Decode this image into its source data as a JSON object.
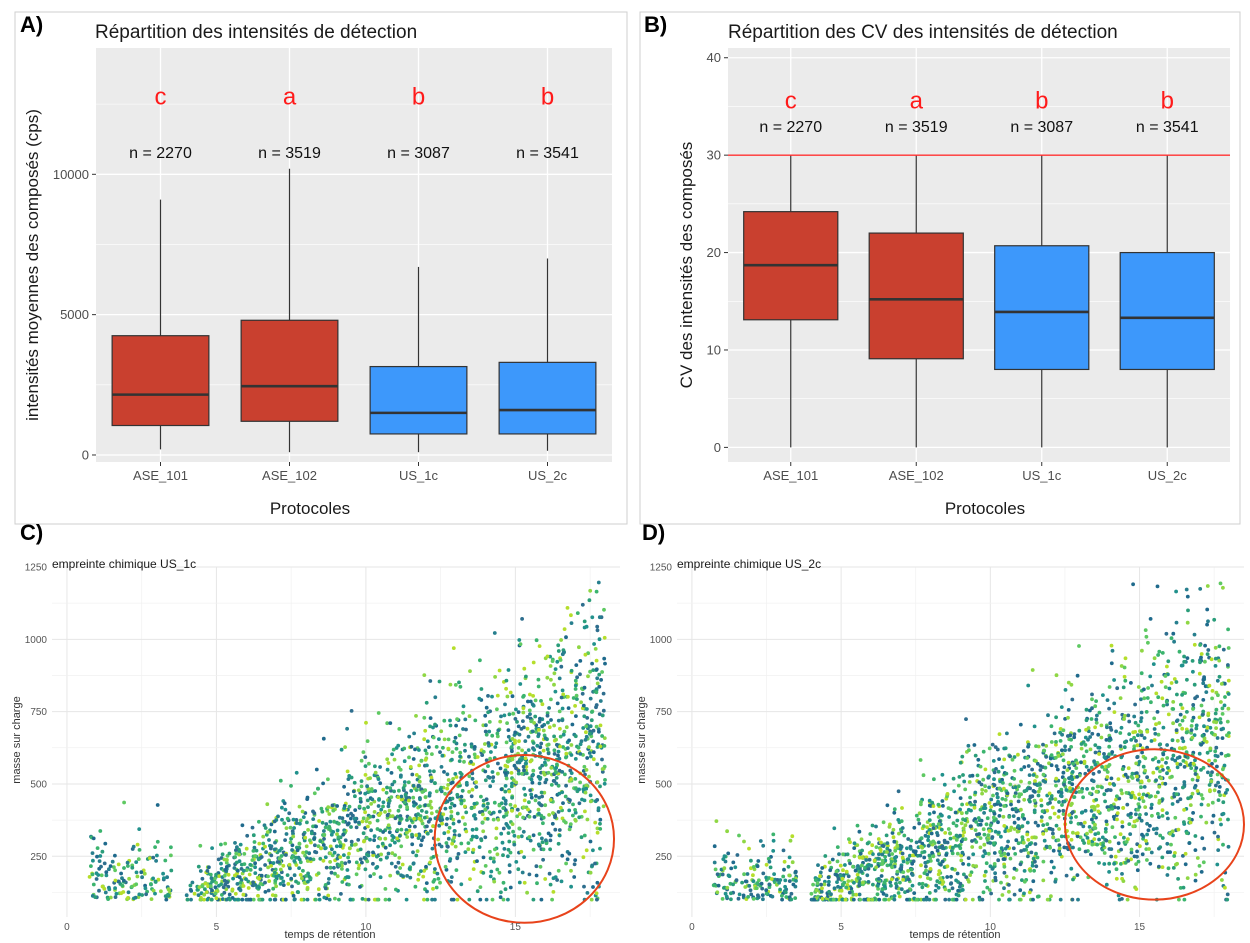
{
  "panels": {
    "a": "A)",
    "b": "B)",
    "c": "C)",
    "d": "D)"
  },
  "colors": {
    "ase": "#c9402f",
    "us": "#3d98fb",
    "panel_bg": "#ebebeb",
    "grid": "#ffffff",
    "threshold": "#ff3030",
    "ellipse": "#e8431b"
  },
  "chart_data": [
    {
      "id": "A",
      "type": "box",
      "title": "Répartition des intensités de détection",
      "xlabel": "Protocoles",
      "ylabel": "intensités moyennes des composés (cps)",
      "ylim": [
        -250,
        14500
      ],
      "yticks": [
        0,
        5000,
        10000
      ],
      "ytick_labels": [
        "0",
        "5000",
        "10000"
      ],
      "categories": [
        "ASE_101",
        "ASE_102",
        "US_1c",
        "US_2c"
      ],
      "groups": [
        "ase",
        "ase",
        "us",
        "us"
      ],
      "boxes": [
        {
          "min": 200,
          "q1": 1050,
          "median": 2150,
          "q3": 4250,
          "max": 9100
        },
        {
          "min": 100,
          "q1": 1200,
          "median": 2450,
          "q3": 4800,
          "max": 10200
        },
        {
          "min": 100,
          "q1": 750,
          "median": 1500,
          "q3": 3150,
          "max": 6700
        },
        {
          "min": 150,
          "q1": 750,
          "median": 1600,
          "q3": 3300,
          "max": 7000
        }
      ],
      "n_labels": [
        "n = 2270",
        "n = 3519",
        "n = 3087",
        "n = 3541"
      ],
      "n_y": 10800,
      "letters": [
        "c",
        "a",
        "b",
        "b"
      ],
      "letter_y": 12800
    },
    {
      "id": "B",
      "type": "box",
      "title": "Répartition des CV des intensités de détection",
      "xlabel": "Protocoles",
      "ylabel": "CV des intensités des composés",
      "ylim": [
        -1.5,
        41
      ],
      "yticks": [
        0,
        10,
        20,
        30,
        40
      ],
      "ytick_labels": [
        "0",
        "10",
        "20",
        "30",
        "40"
      ],
      "categories": [
        "ASE_101",
        "ASE_102",
        "US_1c",
        "US_2c"
      ],
      "groups": [
        "ase",
        "ase",
        "us",
        "us"
      ],
      "boxes": [
        {
          "min": 0,
          "q1": 13.1,
          "median": 18.7,
          "q3": 24.2,
          "max": 30
        },
        {
          "min": 0,
          "q1": 9.1,
          "median": 15.2,
          "q3": 22,
          "max": 30
        },
        {
          "min": 0,
          "q1": 8,
          "median": 13.9,
          "q3": 20.7,
          "max": 30
        },
        {
          "min": 0,
          "q1": 8,
          "median": 13.3,
          "q3": 20,
          "max": 30
        }
      ],
      "threshold": 30,
      "n_labels": [
        "n = 2270",
        "n = 3519",
        "n = 3087",
        "n = 3541"
      ],
      "n_y": 33,
      "letters": [
        "c",
        "a",
        "b",
        "b"
      ],
      "letter_y": 35.7
    },
    {
      "id": "C",
      "type": "scatter",
      "title": "empreinte chimique US_1c",
      "xlabel": "temps de rétention",
      "ylabel": "masse sur charge",
      "xlim": [
        -0.5,
        18.5
      ],
      "ylim": [
        40,
        1250
      ],
      "xticks": [
        0,
        5,
        10,
        15
      ],
      "yticks": [
        250,
        500,
        750,
        1000,
        1250
      ],
      "ellipse": {
        "cx": 15.3,
        "cy": 310,
        "rx": 3.0,
        "ry": 290
      },
      "n_points": 2200,
      "seed": 7
    },
    {
      "id": "D",
      "type": "scatter",
      "title": "empreinte chimique US_2c",
      "xlabel": "temps de rétention",
      "ylabel": "masse sur charge",
      "xlim": [
        -0.5,
        18.5
      ],
      "ylim": [
        40,
        1250
      ],
      "xticks": [
        0,
        5,
        10,
        15
      ],
      "yticks": [
        250,
        500,
        750,
        1000,
        1250
      ],
      "ellipse": {
        "cx": 15.5,
        "cy": 360,
        "rx": 3.0,
        "ry": 260
      },
      "n_points": 2300,
      "seed": 11
    }
  ]
}
